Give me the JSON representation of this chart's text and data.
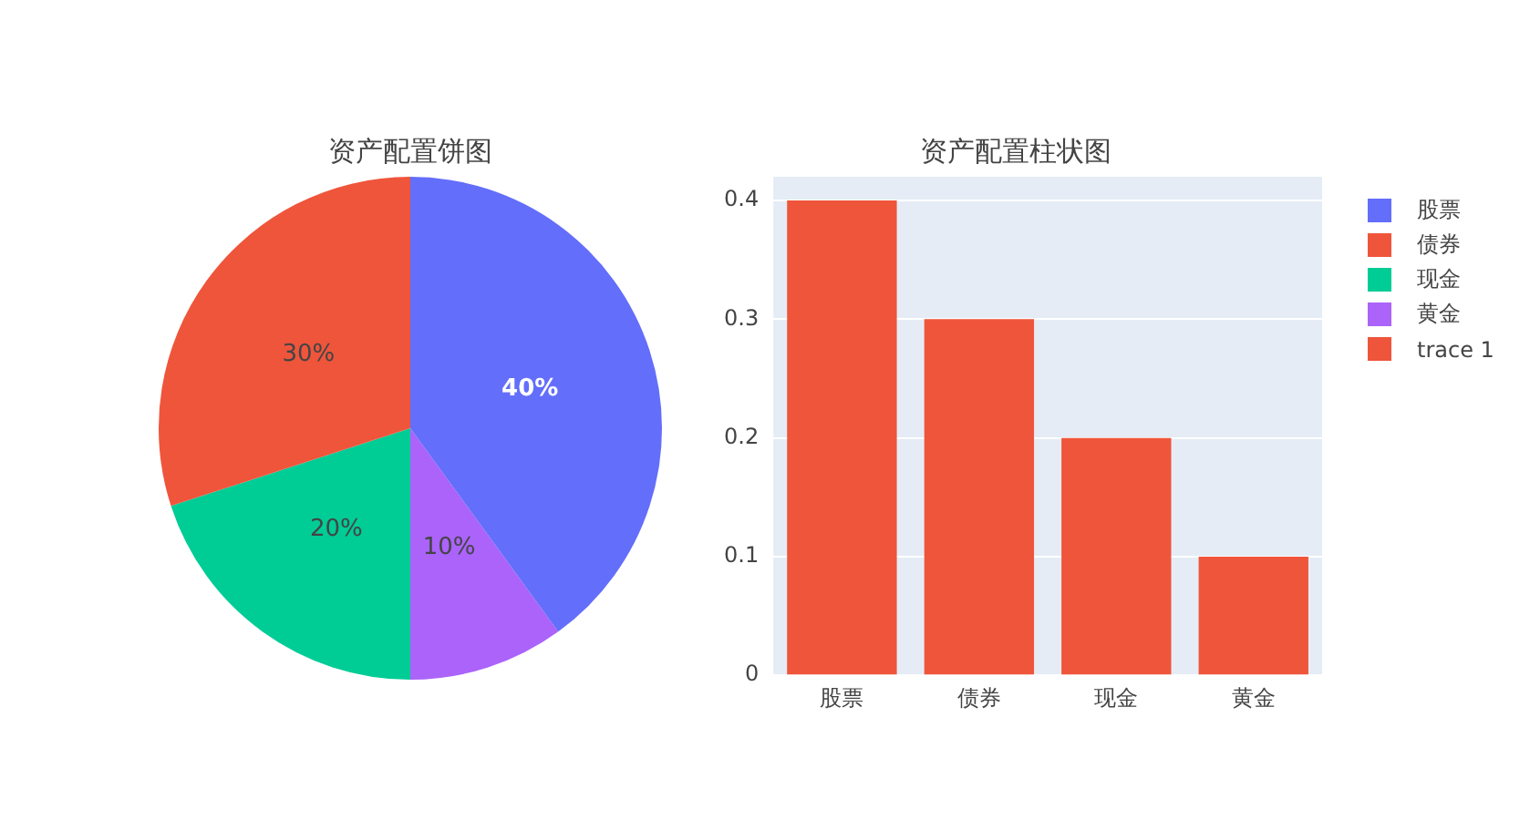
{
  "chart_data": [
    {
      "type": "pie",
      "title": "资产配置饼图",
      "categories": [
        "股票",
        "债券",
        "现金",
        "黄金"
      ],
      "values": [
        40,
        30,
        20,
        10
      ],
      "colors": [
        "#636efa",
        "#ef553b",
        "#00cc96",
        "#ab63fa"
      ],
      "value_labels": [
        "40%",
        "30%",
        "20%",
        "10%"
      ],
      "legend": "right"
    },
    {
      "type": "bar",
      "title": "资产配置柱状图",
      "categories": [
        "股票",
        "债券",
        "现金",
        "黄金"
      ],
      "series": [
        {
          "name": "trace 1",
          "color": "#ef553b",
          "values": [
            0.4,
            0.3,
            0.2,
            0.1
          ]
        }
      ],
      "ylim": [
        0,
        0.42
      ],
      "yticks": [
        0,
        0.1,
        0.2,
        0.3,
        0.4
      ],
      "grid": "y",
      "legend": "right"
    }
  ]
}
